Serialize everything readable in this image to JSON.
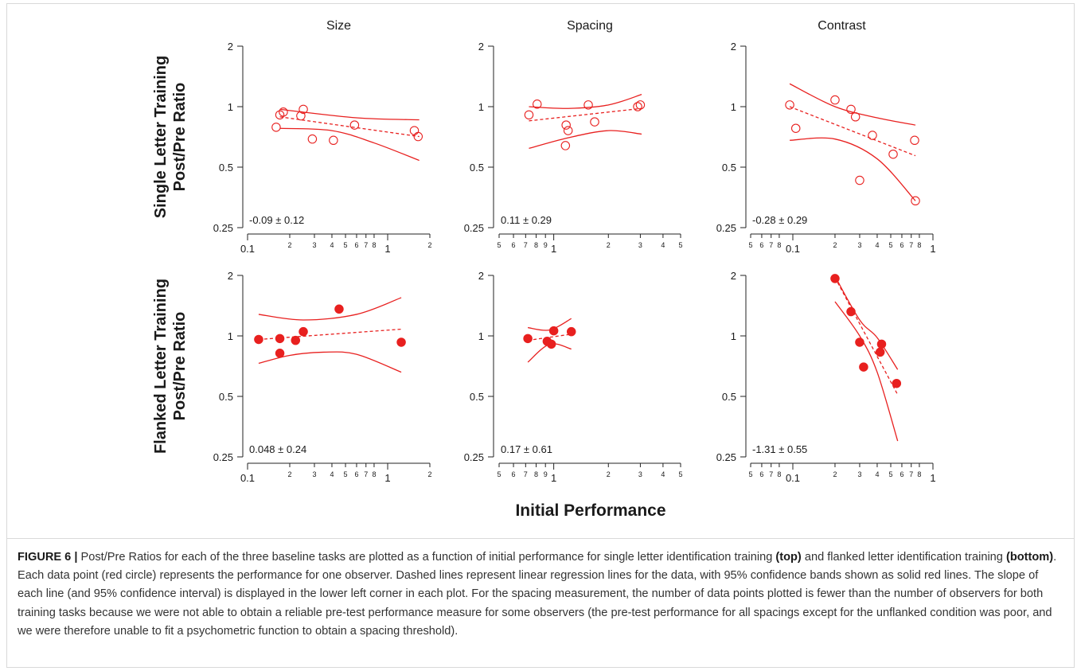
{
  "figure": {
    "x_title": "Initial Performance",
    "row_titles": [
      [
        "Single Letter Training",
        "Post/Pre Ratio"
      ],
      [
        "Flanked Letter Training",
        "Post/Pre Ratio"
      ]
    ],
    "column_titles": [
      "Size",
      "Spacing",
      "Contrast"
    ],
    "color": "#e8201f"
  },
  "caption": {
    "label": "FIGURE 6 |",
    "parts": [
      " Post/Pre Ratios for each of the three baseline tasks are plotted as a function of initial performance for single letter identification training ",
      "(top)",
      " and flanked letter identification training ",
      "(bottom)",
      ". Each data point (red circle) represents the performance for one observer. Dashed lines represent linear regression lines for the data, with 95% confidence bands shown as solid red lines. The slope of each line (and 95% confidence interval) is displayed in the lower left corner in each plot. For the spacing measurement, the number of data points plotted is fewer than the number of observers for both training tasks because we were not able to obtain a reliable pre-test performance measure for some observers (the pre-test performance for all spacings except for the unflanked condition was poor, and we were therefore unable to fit a psychometric function to obtain a spacing threshold)."
    ]
  },
  "chart_data": [
    {
      "type": "scatter",
      "row": 0,
      "col": 0,
      "marker": "open",
      "xscale": "log",
      "yscale": "log",
      "xlim": [
        0.1,
        2
      ],
      "ylim": [
        0.25,
        2
      ],
      "xticks_major": [
        {
          "v": 0.1,
          "label": "0.1"
        },
        {
          "v": 1,
          "label": "1"
        }
      ],
      "xticks_minor": [
        {
          "v": 0.2,
          "label": "2"
        },
        {
          "v": 0.3,
          "label": "3"
        },
        {
          "v": 0.4,
          "label": "4"
        },
        {
          "v": 0.5,
          "label": "5"
        },
        {
          "v": 0.6,
          "label": "6"
        },
        {
          "v": 0.7,
          "label": "7"
        },
        {
          "v": 0.8,
          "label": "8"
        },
        {
          "v": 2,
          "label": "2"
        }
      ],
      "yticks": [
        {
          "v": 0.25,
          "label": "0.25"
        },
        {
          "v": 0.5,
          "label": "0.5"
        },
        {
          "v": 1,
          "label": "1"
        },
        {
          "v": 2,
          "label": "2"
        }
      ],
      "points": [
        [
          0.16,
          0.79
        ],
        [
          0.17,
          0.91
        ],
        [
          0.18,
          0.94
        ],
        [
          0.24,
          0.9
        ],
        [
          0.25,
          0.97
        ],
        [
          0.29,
          0.69
        ],
        [
          0.41,
          0.68
        ],
        [
          0.58,
          0.81
        ],
        [
          1.55,
          0.76
        ],
        [
          1.65,
          0.71
        ]
      ],
      "fit": [
        [
          0.17,
          0.89
        ],
        [
          1.68,
          0.71
        ]
      ],
      "band_upper": [
        [
          0.17,
          0.97
        ],
        [
          0.6,
          0.88
        ],
        [
          1.68,
          0.86
        ]
      ],
      "band_lower": [
        [
          0.17,
          0.78
        ],
        [
          0.4,
          0.76
        ],
        [
          0.8,
          0.66
        ],
        [
          1.68,
          0.54
        ]
      ],
      "annotation": "-0.09 ± 0.12"
    },
    {
      "type": "scatter",
      "row": 0,
      "col": 1,
      "marker": "open",
      "xscale": "log",
      "yscale": "log",
      "xlim": [
        0.5,
        5
      ],
      "ylim": [
        0.25,
        2
      ],
      "xticks_major": [
        {
          "v": 1,
          "label": "1"
        }
      ],
      "xticks_minor": [
        {
          "v": 0.5,
          "label": "5"
        },
        {
          "v": 0.6,
          "label": "6"
        },
        {
          "v": 0.7,
          "label": "7"
        },
        {
          "v": 0.8,
          "label": "8"
        },
        {
          "v": 0.9,
          "label": "9"
        },
        {
          "v": 2,
          "label": "2"
        },
        {
          "v": 3,
          "label": "3"
        },
        {
          "v": 4,
          "label": "4"
        },
        {
          "v": 5,
          "label": "5"
        }
      ],
      "yticks": [
        {
          "v": 0.25,
          "label": "0.25"
        },
        {
          "v": 0.5,
          "label": "0.5"
        },
        {
          "v": 1,
          "label": "1"
        },
        {
          "v": 2,
          "label": "2"
        }
      ],
      "points": [
        [
          0.73,
          0.91
        ],
        [
          0.81,
          1.03
        ],
        [
          1.17,
          0.81
        ],
        [
          1.2,
          0.76
        ],
        [
          1.16,
          0.64
        ],
        [
          1.55,
          1.02
        ],
        [
          1.68,
          0.84
        ],
        [
          2.9,
          1.0
        ],
        [
          3.0,
          1.02
        ]
      ],
      "fit": [
        [
          0.73,
          0.85
        ],
        [
          3.05,
          0.98
        ]
      ],
      "band_upper": [
        [
          0.73,
          1.0
        ],
        [
          1.2,
          0.98
        ],
        [
          2.0,
          1.02
        ],
        [
          3.05,
          1.15
        ]
      ],
      "band_lower": [
        [
          0.73,
          0.62
        ],
        [
          1.2,
          0.7
        ],
        [
          2.0,
          0.76
        ],
        [
          3.05,
          0.73
        ]
      ],
      "annotation": "0.11 ± 0.29"
    },
    {
      "type": "scatter",
      "row": 0,
      "col": 2,
      "marker": "open",
      "xscale": "log",
      "yscale": "log",
      "xlim": [
        0.05,
        1
      ],
      "ylim": [
        0.25,
        2
      ],
      "xticks_major": [
        {
          "v": 0.1,
          "label": "0.1"
        },
        {
          "v": 1,
          "label": "1"
        }
      ],
      "xticks_minor": [
        {
          "v": 0.05,
          "label": "5"
        },
        {
          "v": 0.06,
          "label": "6"
        },
        {
          "v": 0.07,
          "label": "7"
        },
        {
          "v": 0.08,
          "label": "8"
        },
        {
          "v": 0.2,
          "label": "2"
        },
        {
          "v": 0.3,
          "label": "3"
        },
        {
          "v": 0.4,
          "label": "4"
        },
        {
          "v": 0.5,
          "label": "5"
        },
        {
          "v": 0.6,
          "label": "6"
        },
        {
          "v": 0.7,
          "label": "7"
        },
        {
          "v": 0.8,
          "label": "8"
        }
      ],
      "yticks": [
        {
          "v": 0.25,
          "label": "0.25"
        },
        {
          "v": 0.5,
          "label": "0.5"
        },
        {
          "v": 1,
          "label": "1"
        },
        {
          "v": 2,
          "label": "2"
        }
      ],
      "points": [
        [
          0.095,
          1.02
        ],
        [
          0.105,
          0.78
        ],
        [
          0.2,
          1.08
        ],
        [
          0.26,
          0.97
        ],
        [
          0.28,
          0.89
        ],
        [
          0.3,
          0.43
        ],
        [
          0.37,
          0.72
        ],
        [
          0.52,
          0.58
        ],
        [
          0.74,
          0.68
        ],
        [
          0.75,
          0.34
        ]
      ],
      "fit": [
        [
          0.095,
          1.0
        ],
        [
          0.75,
          0.57
        ]
      ],
      "band_upper": [
        [
          0.095,
          1.3
        ],
        [
          0.2,
          1.0
        ],
        [
          0.4,
          0.88
        ],
        [
          0.75,
          0.81
        ]
      ],
      "band_lower": [
        [
          0.095,
          0.68
        ],
        [
          0.2,
          0.69
        ],
        [
          0.4,
          0.55
        ],
        [
          0.75,
          0.34
        ]
      ],
      "annotation": "-0.28 ± 0.29"
    },
    {
      "type": "scatter",
      "row": 1,
      "col": 0,
      "marker": "filled",
      "xscale": "log",
      "yscale": "log",
      "xlim": [
        0.1,
        2
      ],
      "ylim": [
        0.25,
        2
      ],
      "xticks_major": [
        {
          "v": 0.1,
          "label": "0.1"
        },
        {
          "v": 1,
          "label": "1"
        }
      ],
      "xticks_minor": [
        {
          "v": 0.2,
          "label": "2"
        },
        {
          "v": 0.3,
          "label": "3"
        },
        {
          "v": 0.4,
          "label": "4"
        },
        {
          "v": 0.5,
          "label": "5"
        },
        {
          "v": 0.6,
          "label": "6"
        },
        {
          "v": 0.7,
          "label": "7"
        },
        {
          "v": 0.8,
          "label": "8"
        },
        {
          "v": 2,
          "label": "2"
        }
      ],
      "yticks": [
        {
          "v": 0.25,
          "label": "0.25"
        },
        {
          "v": 0.5,
          "label": "0.5"
        },
        {
          "v": 1,
          "label": "1"
        },
        {
          "v": 2,
          "label": "2"
        }
      ],
      "points": [
        [
          0.12,
          0.96
        ],
        [
          0.17,
          0.97
        ],
        [
          0.17,
          0.82
        ],
        [
          0.22,
          0.95
        ],
        [
          0.25,
          1.05
        ],
        [
          0.45,
          1.36
        ],
        [
          1.25,
          0.93
        ]
      ],
      "fit": [
        [
          0.12,
          0.96
        ],
        [
          1.25,
          1.08
        ]
      ],
      "band_upper": [
        [
          0.12,
          1.28
        ],
        [
          0.25,
          1.2
        ],
        [
          0.6,
          1.28
        ],
        [
          1.25,
          1.55
        ]
      ],
      "band_lower": [
        [
          0.12,
          0.73
        ],
        [
          0.2,
          0.8
        ],
        [
          0.35,
          0.83
        ],
        [
          0.6,
          0.81
        ],
        [
          1.25,
          0.66
        ]
      ],
      "annotation": "0.048 ± 0.24"
    },
    {
      "type": "scatter",
      "row": 1,
      "col": 1,
      "marker": "filled",
      "xscale": "log",
      "yscale": "log",
      "xlim": [
        0.5,
        5
      ],
      "ylim": [
        0.25,
        2
      ],
      "xticks_major": [
        {
          "v": 1,
          "label": "1"
        }
      ],
      "xticks_minor": [
        {
          "v": 0.5,
          "label": "5"
        },
        {
          "v": 0.6,
          "label": "6"
        },
        {
          "v": 0.7,
          "label": "7"
        },
        {
          "v": 0.8,
          "label": "8"
        },
        {
          "v": 0.9,
          "label": "9"
        },
        {
          "v": 2,
          "label": "2"
        },
        {
          "v": 3,
          "label": "3"
        },
        {
          "v": 4,
          "label": "4"
        },
        {
          "v": 5,
          "label": "5"
        }
      ],
      "yticks": [
        {
          "v": 0.25,
          "label": "0.25"
        },
        {
          "v": 0.5,
          "label": "0.5"
        },
        {
          "v": 1,
          "label": "1"
        },
        {
          "v": 2,
          "label": "2"
        }
      ],
      "points": [
        [
          0.72,
          0.97
        ],
        [
          0.92,
          0.94
        ],
        [
          0.97,
          0.91
        ],
        [
          1.0,
          1.06
        ],
        [
          1.25,
          1.05
        ]
      ],
      "fit": [
        [
          0.72,
          0.95
        ],
        [
          1.25,
          1.02
        ]
      ],
      "band_upper": [
        [
          0.72,
          1.1
        ],
        [
          0.95,
          1.07
        ],
        [
          1.25,
          1.22
        ]
      ],
      "band_lower": [
        [
          0.72,
          0.74
        ],
        [
          0.95,
          0.91
        ],
        [
          1.25,
          0.86
        ]
      ],
      "annotation": "0.17 ± 0.61"
    },
    {
      "type": "scatter",
      "row": 1,
      "col": 2,
      "marker": "filled",
      "xscale": "log",
      "yscale": "log",
      "xlim": [
        0.05,
        1
      ],
      "ylim": [
        0.25,
        2
      ],
      "xticks_major": [
        {
          "v": 0.1,
          "label": "0.1"
        },
        {
          "v": 1,
          "label": "1"
        }
      ],
      "xticks_minor": [
        {
          "v": 0.05,
          "label": "5"
        },
        {
          "v": 0.06,
          "label": "6"
        },
        {
          "v": 0.07,
          "label": "7"
        },
        {
          "v": 0.08,
          "label": "8"
        },
        {
          "v": 0.2,
          "label": "2"
        },
        {
          "v": 0.3,
          "label": "3"
        },
        {
          "v": 0.4,
          "label": "4"
        },
        {
          "v": 0.5,
          "label": "5"
        },
        {
          "v": 0.6,
          "label": "6"
        },
        {
          "v": 0.7,
          "label": "7"
        },
        {
          "v": 0.8,
          "label": "8"
        }
      ],
      "yticks": [
        {
          "v": 0.25,
          "label": "0.25"
        },
        {
          "v": 0.5,
          "label": "0.5"
        },
        {
          "v": 1,
          "label": "1"
        },
        {
          "v": 2,
          "label": "2"
        }
      ],
      "points": [
        [
          0.2,
          1.93
        ],
        [
          0.26,
          1.32
        ],
        [
          0.3,
          0.93
        ],
        [
          0.32,
          0.7
        ],
        [
          0.42,
          0.83
        ],
        [
          0.43,
          0.91
        ],
        [
          0.55,
          0.58
        ]
      ],
      "fit": [
        [
          0.2,
          1.95
        ],
        [
          0.56,
          0.51
        ]
      ],
      "band_upper": [
        [
          0.2,
          1.98
        ],
        [
          0.3,
          1.2
        ],
        [
          0.4,
          0.98
        ],
        [
          0.56,
          0.68
        ]
      ],
      "band_lower": [
        [
          0.2,
          1.48
        ],
        [
          0.3,
          1.0
        ],
        [
          0.4,
          0.66
        ],
        [
          0.56,
          0.3
        ]
      ],
      "annotation": "-1.31 ± 0.55"
    }
  ]
}
